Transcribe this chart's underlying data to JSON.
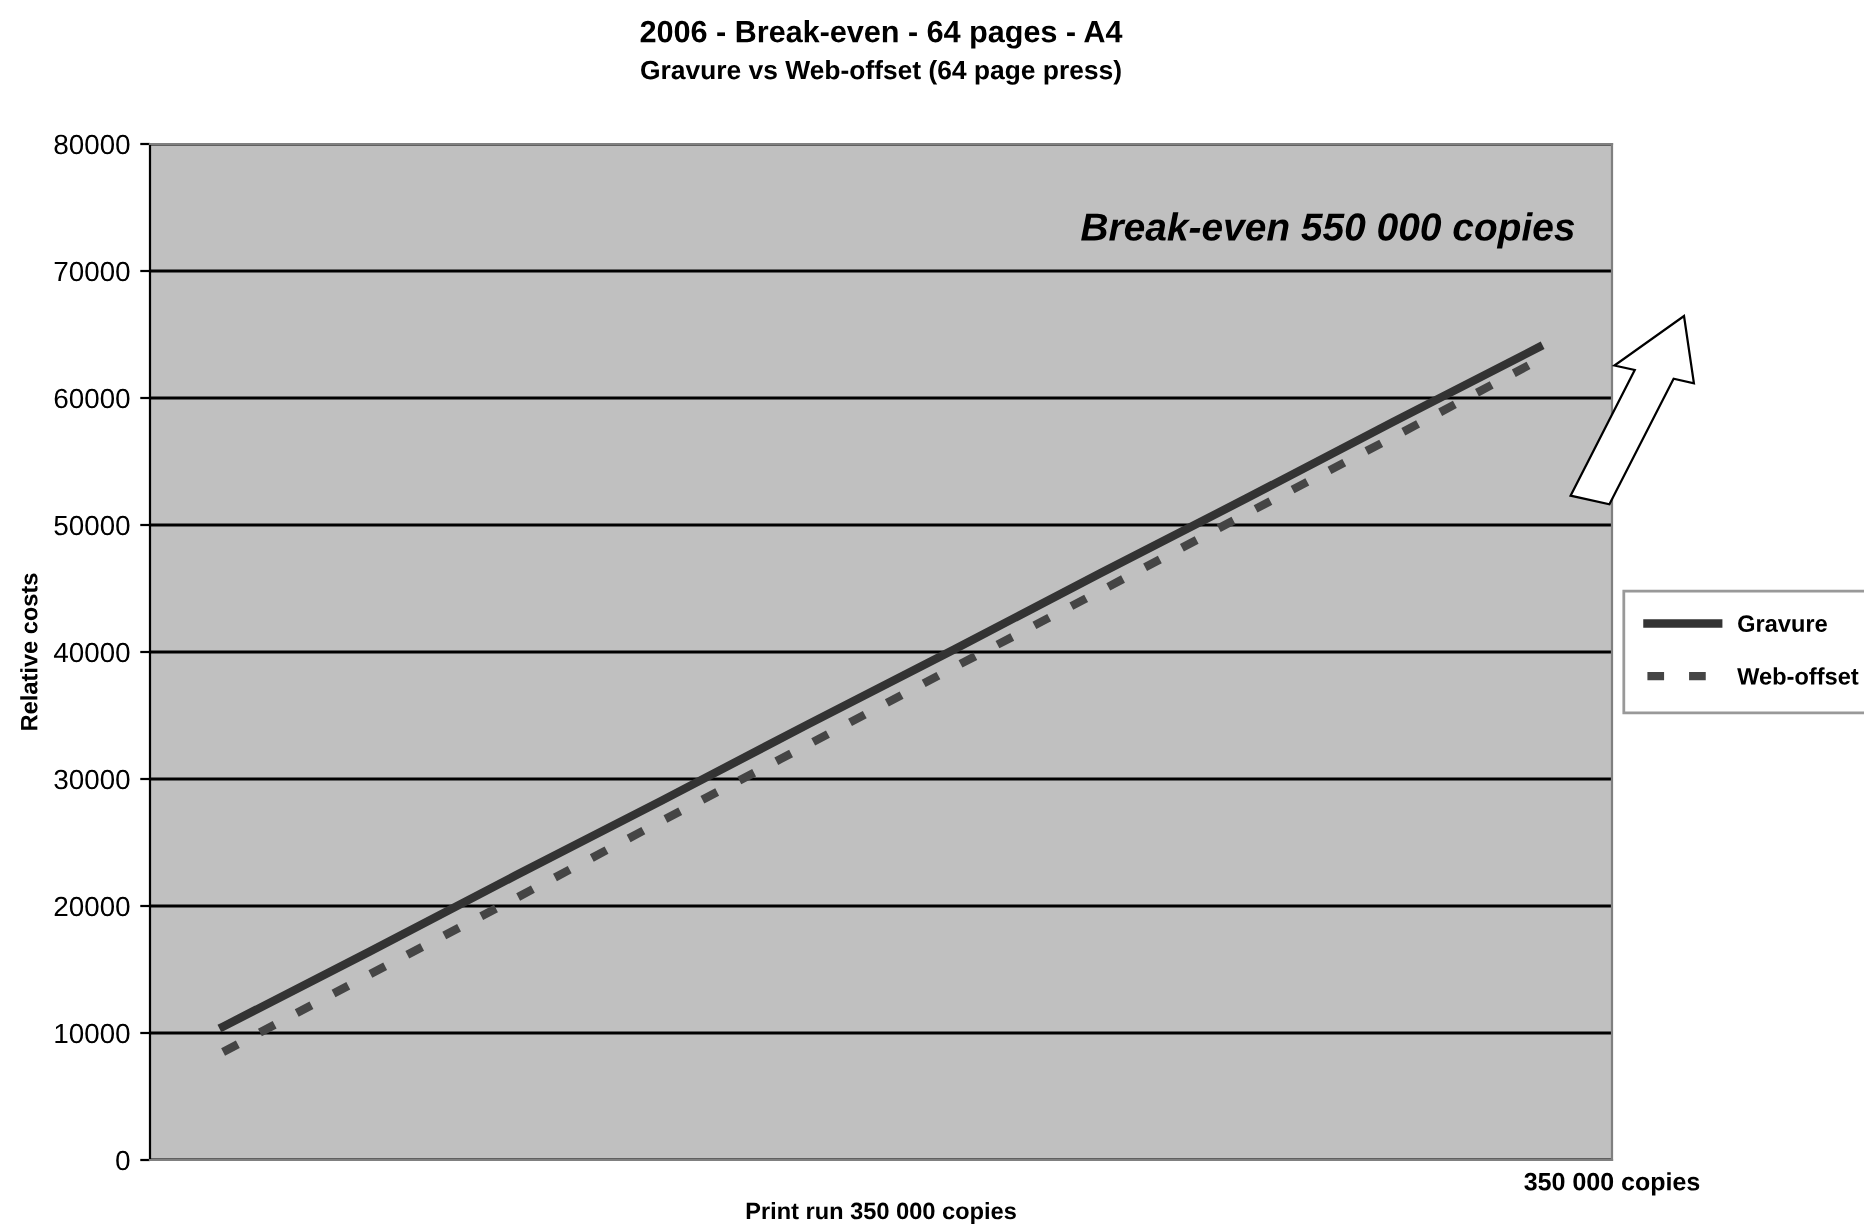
{
  "chart_data": {
    "type": "line",
    "title": "2006 - Break-even - 64 pages - A4",
    "subtitle": "Gravure vs Web-offset (64 page press)",
    "xlabel": "Print run 350 000 copies",
    "ylabel": "Relative costs",
    "categories": [
      null,
      null,
      null,
      null,
      null,
      null,
      null,
      null,
      null,
      null
    ],
    "series": [
      {
        "name": "Gravure",
        "color": "#333333",
        "values": [
          10500,
          16400,
          22400,
          28300,
          34300,
          40200,
          46200,
          52100,
          58100,
          64000
        ],
        "line_style": "solid"
      },
      {
        "name": "Web-offset",
        "color": "#454545",
        "values": [
          8500,
          14600,
          20600,
          26700,
          32700,
          38800,
          44800,
          50900,
          56900,
          63000
        ],
        "line_style": "dashed"
      }
    ],
    "ylim": [
      0,
      80000
    ],
    "yticks": [
      0,
      10000,
      20000,
      30000,
      40000,
      50000,
      60000,
      70000,
      80000
    ],
    "grid": "y",
    "legend": "right",
    "marker": "none",
    "annotations": [
      "Break-even 550 000 copies",
      "350 000 copies"
    ]
  }
}
